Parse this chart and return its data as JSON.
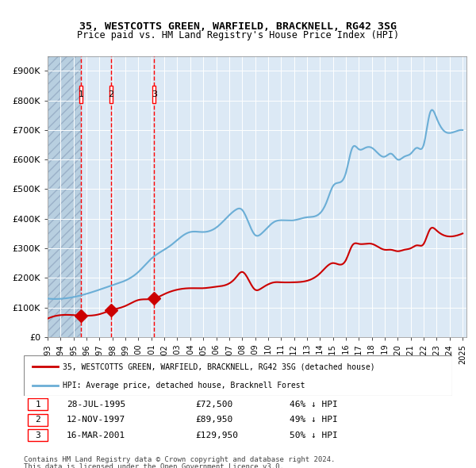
{
  "title_line1": "35, WESTCOTTS GREEN, WARFIELD, BRACKNELL, RG42 3SG",
  "title_line2": "Price paid vs. HM Land Registry's House Price Index (HPI)",
  "legend_red": "35, WESTCOTTS GREEN, WARFIELD, BRACKNELL, RG42 3SG (detached house)",
  "legend_blue": "HPI: Average price, detached house, Bracknell Forest",
  "footer_line1": "Contains HM Land Registry data © Crown copyright and database right 2024.",
  "footer_line2": "This data is licensed under the Open Government Licence v3.0.",
  "transactions": [
    {
      "num": 1,
      "date": "1995-07-28",
      "price": 72500,
      "label": "28-JUL-1995",
      "price_str": "£72,500",
      "hpi_str": "46% ↓ HPI"
    },
    {
      "num": 2,
      "date": "1997-11-12",
      "price": 89950,
      "label": "12-NOV-1997",
      "price_str": "£89,950",
      "hpi_str": "49% ↓ HPI"
    },
    {
      "num": 3,
      "date": "2001-03-16",
      "price": 129950,
      "label": "16-MAR-2001",
      "price_str": "£129,950",
      "hpi_str": "50% ↓ HPI"
    }
  ],
  "hpi_color": "#6baed6",
  "price_color": "#cc0000",
  "hatch_color": "#c0c0c0",
  "bg_plot": "#dce9f5",
  "bg_hatch": "#b8cfe0",
  "grid_color": "#ffffff",
  "ylim": [
    0,
    950000
  ],
  "yticks": [
    0,
    100000,
    200000,
    300000,
    400000,
    500000,
    600000,
    700000,
    800000,
    900000
  ],
  "xlabel_years": [
    "1993",
    "1994",
    "1995",
    "1996",
    "1997",
    "1998",
    "1999",
    "2000",
    "2001",
    "2002",
    "2003",
    "2004",
    "2005",
    "2006",
    "2007",
    "2008",
    "2009",
    "2010",
    "2011",
    "2012",
    "2013",
    "2014",
    "2015",
    "2016",
    "2017",
    "2018",
    "2019",
    "2020",
    "2021",
    "2022",
    "2023",
    "2024",
    "2025"
  ]
}
